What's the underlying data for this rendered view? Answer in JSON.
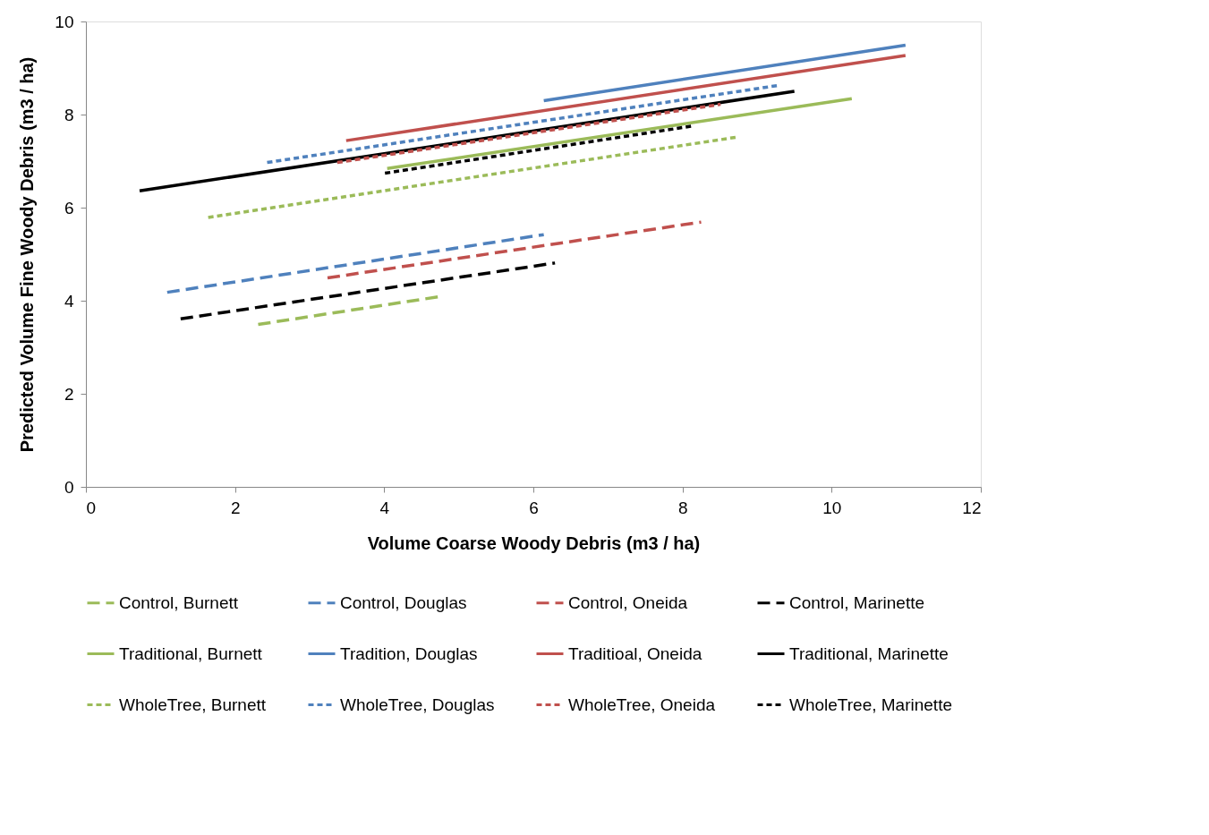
{
  "chart_data": {
    "type": "line",
    "xlabel": "Volume Coarse Woody Debris (m3 / ha)",
    "ylabel": "Predicted Volume Fine Woody Debris  (m3 / ha)",
    "xlim": [
      0,
      12
    ],
    "ylim": [
      0,
      10
    ],
    "xticks": [
      0,
      2,
      4,
      6,
      8,
      10,
      12
    ],
    "yticks": [
      0,
      2,
      4,
      6,
      8,
      10
    ],
    "grid": false,
    "legend": "bottom",
    "marker": "none",
    "series": [
      {
        "name": "Control, Burnett",
        "color": "#9bbb59",
        "line_style": "dashed",
        "x": [
          2.31,
          4.75
        ],
        "values": [
          3.49,
          4.09
        ]
      },
      {
        "name": "Control, Douglas",
        "color": "#4f81bd",
        "line_style": "dashed",
        "x": [
          1.09,
          6.14
        ],
        "values": [
          4.18,
          5.42
        ]
      },
      {
        "name": "Control, Oneida",
        "color": "#c0504d",
        "line_style": "dashed",
        "x": [
          3.24,
          8.25
        ],
        "values": [
          4.49,
          5.69
        ]
      },
      {
        "name": "Control, Marinette",
        "color": "#000000",
        "line_style": "dashed",
        "x": [
          1.27,
          6.29
        ],
        "values": [
          3.61,
          4.81
        ]
      },
      {
        "name": "Traditional, Burnett",
        "color": "#9bbb59",
        "line_style": "solid",
        "x": [
          4.04,
          10.27
        ],
        "values": [
          6.84,
          8.34
        ]
      },
      {
        "name": "Tradition, Douglas",
        "color": "#4f81bd",
        "line_style": "solid",
        "x": [
          6.14,
          10.99
        ],
        "values": [
          8.3,
          9.49
        ]
      },
      {
        "name": "Traditioal, Oneida",
        "color": "#c0504d",
        "line_style": "solid",
        "x": [
          3.49,
          10.99
        ],
        "values": [
          7.44,
          9.27
        ]
      },
      {
        "name": "Traditional, Marinette",
        "color": "#000000",
        "line_style": "solid",
        "x": [
          0.72,
          9.5
        ],
        "values": [
          6.36,
          8.5
        ]
      },
      {
        "name": "WholeTree, Burnett",
        "color": "#9bbb59",
        "line_style": "dotted",
        "x": [
          1.64,
          8.75
        ],
        "values": [
          5.79,
          7.52
        ]
      },
      {
        "name": "WholeTree, Douglas",
        "color": "#4f81bd",
        "line_style": "dotted",
        "x": [
          2.43,
          9.3
        ],
        "values": [
          6.97,
          8.63
        ]
      },
      {
        "name": "WholeTree, Oneida",
        "color": "#c0504d",
        "line_style": "dotted",
        "x": [
          3.37,
          8.51
        ],
        "values": [
          6.97,
          8.22
        ]
      },
      {
        "name": "WholeTree, Marinette",
        "color": "#000000",
        "line_style": "dotted",
        "x": [
          4.01,
          8.12
        ],
        "values": [
          6.74,
          7.75
        ]
      }
    ]
  }
}
